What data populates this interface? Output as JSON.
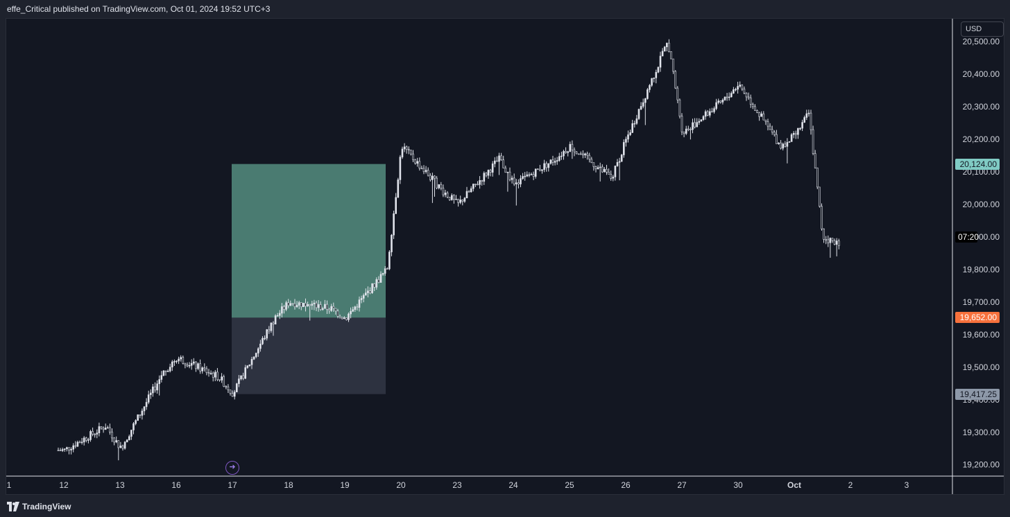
{
  "header": {
    "text": "effe_Critical published on TradingView.com, Oct 01, 2024 19:52 UTC+3"
  },
  "footer": {
    "brand": "TradingView",
    "logo_icon": "tradingview-logo-icon"
  },
  "currency_button": "USD",
  "replay_icon": "arrow-right-circle-icon",
  "colors": {
    "background": "#131722",
    "chrome": "#1e222d",
    "candle": "#e0e3eb",
    "profit_zone": "#4a7b71",
    "stop_zone": "#2d3240",
    "target_tag": "#80cbc4",
    "entry_tag": "#f7713c",
    "stop_tag": "#8d98a8",
    "replay_accent": "#7e57c2"
  },
  "price_tags": {
    "target": "20,124.00",
    "countdown": "07:20",
    "entry": "19,652.00",
    "stop": "19,417.25"
  },
  "chart_data": {
    "type": "candlestick",
    "title": "",
    "currency": "USD",
    "ylim": [
      19175,
      20530
    ],
    "y_ticks": [
      {
        "value": 20500,
        "label": "20,500.00"
      },
      {
        "value": 20400,
        "label": "20,400.00"
      },
      {
        "value": 20300,
        "label": "20,300.00"
      },
      {
        "value": 20200,
        "label": "20,200.00"
      },
      {
        "value": 20100,
        "label": "20,100.00"
      },
      {
        "value": 20000,
        "label": "20,000.00"
      },
      {
        "value": 19900,
        "label": "19,900.00"
      },
      {
        "value": 19800,
        "label": "19,800.00"
      },
      {
        "value": 19700,
        "label": "19,700.00"
      },
      {
        "value": 19600,
        "label": "19,600.00"
      },
      {
        "value": 19500,
        "label": "19,500.00"
      },
      {
        "value": 19400,
        "label": "19,400.00"
      },
      {
        "value": 19300,
        "label": "19,300.00"
      },
      {
        "value": 19200,
        "label": "19,200.00"
      }
    ],
    "x_labels": [
      "1",
      "12",
      "13",
      "16",
      "17",
      "18",
      "19",
      "20",
      "23",
      "24",
      "25",
      "26",
      "27",
      "30",
      "Oct",
      "2",
      "3"
    ],
    "position": {
      "type": "long",
      "entry": 19652.0,
      "target": 20124.0,
      "stop": 19417.25,
      "start_label": "17",
      "end_label": "20"
    },
    "path_points": [
      {
        "x": "12",
        "y": 19245
      },
      {
        "x": "12",
        "y": 19320
      },
      {
        "x": "13",
        "y": 19250
      },
      {
        "x": "13",
        "y": 19480
      },
      {
        "x": "16",
        "y": 19530
      },
      {
        "x": "16",
        "y": 19470
      },
      {
        "x": "17",
        "y": 19420
      },
      {
        "x": "17",
        "y": 19650
      },
      {
        "x": "18",
        "y": 19700
      },
      {
        "x": "18",
        "y": 19680
      },
      {
        "x": "19",
        "y": 19650
      },
      {
        "x": "19",
        "y": 19800
      },
      {
        "x": "20",
        "y": 20180
      },
      {
        "x": "20",
        "y": 20040
      },
      {
        "x": "23",
        "y": 20000
      },
      {
        "x": "23",
        "y": 20140
      },
      {
        "x": "24",
        "y": 20060
      },
      {
        "x": "24",
        "y": 20140
      },
      {
        "x": "25",
        "y": 20180
      },
      {
        "x": "25",
        "y": 20080
      },
      {
        "x": "26",
        "y": 20200
      },
      {
        "x": "26",
        "y": 20500
      },
      {
        "x": "27",
        "y": 20220
      },
      {
        "x": "27",
        "y": 20320
      },
      {
        "x": "30",
        "y": 20370
      },
      {
        "x": "30",
        "y": 20180
      },
      {
        "x": "Oct",
        "y": 20210
      },
      {
        "x": "Oct",
        "y": 20280
      },
      {
        "x": "Oct",
        "y": 19900
      },
      {
        "x": "Oct",
        "y": 19880
      }
    ]
  }
}
